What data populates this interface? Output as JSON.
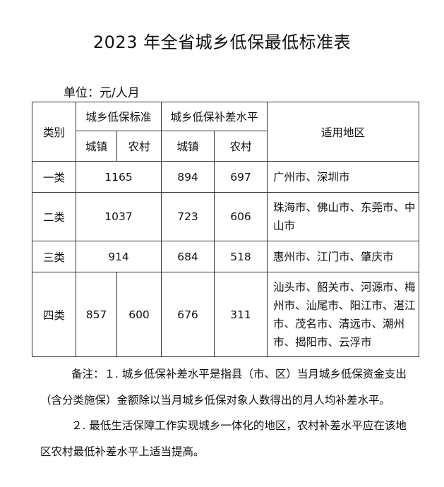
{
  "title": "2023 年全省城乡低保最低标准表",
  "unit": "单位：元/人月",
  "table": {
    "header": {
      "category": "类别",
      "standard": "城乡低保标准",
      "subsidy": "城乡低保补差水平",
      "region": "适用地区",
      "urban": "城镇",
      "rural": "农村"
    },
    "rows": [
      {
        "category": "一类",
        "standard": "1165",
        "subsidy_urban": "894",
        "subsidy_rural": "697",
        "region": "广州市、深圳市"
      },
      {
        "category": "二类",
        "standard": "1037",
        "subsidy_urban": "723",
        "subsidy_rural": "606",
        "region": "珠海市、佛山市、东莞市、中山市"
      },
      {
        "category": "三类",
        "standard": "914",
        "subsidy_urban": "684",
        "subsidy_rural": "518",
        "region": "惠州市、江门市、肇庆市"
      },
      {
        "category": "四类",
        "standard_urban": "857",
        "standard_rural": "600",
        "subsidy_urban": "676",
        "subsidy_rural": "311",
        "region": "汕头市、韶关市、河源市、梅州市、汕尾市、阳江市、湛江市、茂名市、清远市、潮州市、揭阳市、云浮市"
      }
    ]
  },
  "notes": {
    "note1": "备注：１. 城乡低保补差水平是指县（市、区）当月城乡低保资金支出（含分类施保）金额除以当月城乡低保对象人数得出的月人均补差水平。",
    "note2": "２. 最低生活保障工作实现城乡一体化的地区，农村补差水平应在该地区农村最低补差水平上适当提高。"
  }
}
